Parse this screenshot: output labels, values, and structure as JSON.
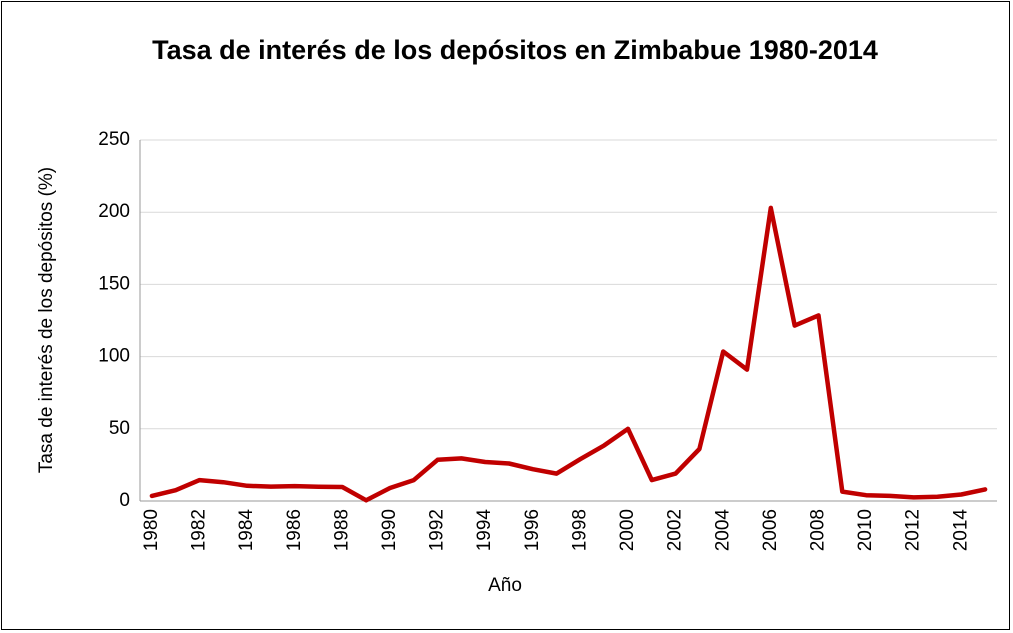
{
  "chart_data": {
    "type": "line",
    "title": "Tasa de interés de los depósitos en Zimbabue 1980-2014",
    "x_label": "Año",
    "y_label": "Tasa de interés de los depósitos (%)",
    "categories": [
      "1980",
      null,
      "1982",
      null,
      "1984",
      null,
      "1986",
      null,
      "1988",
      null,
      "1990",
      null,
      "1992",
      null,
      "1994",
      null,
      "1996",
      null,
      "1998",
      null,
      "2000",
      null,
      "2002",
      null,
      "2004",
      null,
      "2006",
      null,
      "2008",
      null,
      "2010",
      null,
      "2012",
      null,
      "2014",
      null
    ],
    "series": [
      {
        "name": "Tasa de interés de los depósitos",
        "color": "#c00000",
        "values": [
          3.5,
          7.5,
          14.5,
          13,
          10.5,
          10,
          10.3,
          9.8,
          9.7,
          0.5,
          9,
          14.5,
          28.5,
          29.5,
          27,
          26,
          22,
          19,
          29,
          38.5,
          50,
          14.5,
          19,
          36,
          103.5,
          91,
          203,
          121.5,
          128.5,
          6.5,
          4,
          3.5,
          2.5,
          3,
          4.5,
          8
        ]
      }
    ],
    "ylim": [
      0,
      250
    ],
    "yticks": [
      0,
      50,
      100,
      150,
      200,
      250
    ],
    "grid": true
  }
}
